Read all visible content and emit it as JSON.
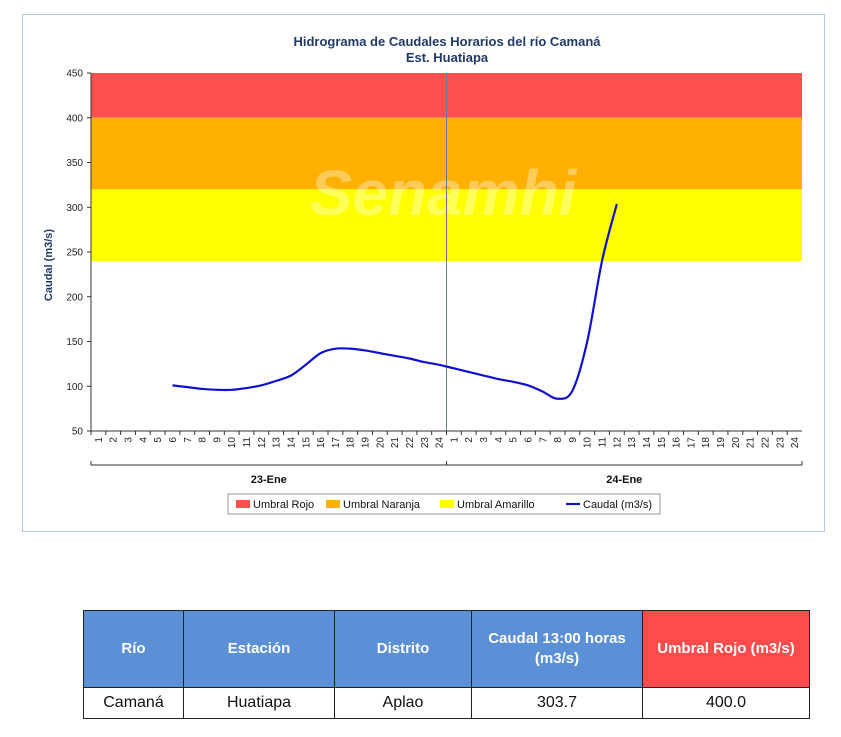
{
  "chart_data": {
    "type": "line",
    "title": "Hidrograma de Caudales Horarios del río Camaná",
    "subtitle": "Est. Huatiapa",
    "xlabel": "",
    "ylabel": "Caudal  (m3/s)",
    "ylim": [
      50,
      450
    ],
    "yticks": [
      50,
      100,
      150,
      200,
      250,
      300,
      350,
      400,
      450
    ],
    "x_hour_labels": [
      "1",
      "2",
      "3",
      "4",
      "5",
      "6",
      "7",
      "8",
      "9",
      "10",
      "11",
      "12",
      "13",
      "14",
      "15",
      "16",
      "17",
      "18",
      "19",
      "20",
      "21",
      "22",
      "23",
      "24",
      "1",
      "2",
      "3",
      "4",
      "5",
      "6",
      "7",
      "8",
      "9",
      "10",
      "11",
      "12",
      "13",
      "14",
      "15",
      "16",
      "17",
      "18",
      "19",
      "20",
      "21",
      "22",
      "23",
      "24"
    ],
    "day_labels": [
      "23-Ene",
      "24-Ene"
    ],
    "thresholds": [
      {
        "name": "Umbral Rojo",
        "from": 400,
        "to": 450,
        "color": "#ff4f4f"
      },
      {
        "name": "Umbral Naranja",
        "from": 320,
        "to": 400,
        "color": "#ffb000"
      },
      {
        "name": "Umbral Amarillo",
        "from": 240,
        "to": 320,
        "color": "#ffff00"
      }
    ],
    "series": [
      {
        "name": "Caudal (m3/s)",
        "color": "#1010d0",
        "points": [
          [
            6,
            101
          ],
          [
            7,
            99
          ],
          [
            8,
            97
          ],
          [
            9,
            96
          ],
          [
            10,
            96
          ],
          [
            11,
            98
          ],
          [
            12,
            101
          ],
          [
            13,
            106
          ],
          [
            14,
            112
          ],
          [
            15,
            124
          ],
          [
            16,
            137
          ],
          [
            17,
            142
          ],
          [
            18,
            142
          ],
          [
            19,
            140
          ],
          [
            20,
            137
          ],
          [
            21,
            134
          ],
          [
            22,
            131
          ],
          [
            23,
            127
          ],
          [
            24,
            124
          ],
          [
            25,
            120
          ],
          [
            26,
            116
          ],
          [
            27,
            112
          ],
          [
            28,
            108
          ],
          [
            29,
            105
          ],
          [
            30,
            101
          ],
          [
            31,
            94
          ],
          [
            32,
            86
          ],
          [
            33,
            95
          ],
          [
            34,
            150
          ],
          [
            35,
            240
          ],
          [
            36,
            303.7
          ]
        ]
      }
    ],
    "legend": [
      "Umbral Rojo",
      "Umbral Naranja",
      "Umbral Amarillo",
      "Caudal (m3/s)"
    ],
    "legend_position": "bottom",
    "watermark": "Senamhi",
    "grid": false
  },
  "table": {
    "headers": [
      "Río",
      "Estación",
      "Distrito",
      "Caudal 13:00 horas (m3/s)",
      "Umbral  Rojo (m3/s)"
    ],
    "row": [
      "Camaná",
      "Huatiapa",
      "Aplao",
      "303.7",
      "400.0"
    ]
  }
}
